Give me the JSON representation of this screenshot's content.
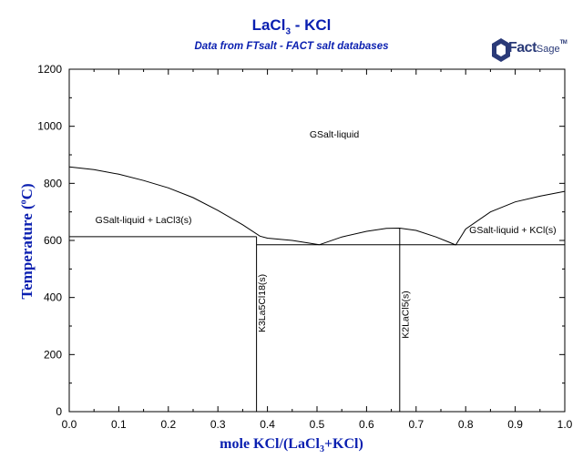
{
  "header": {
    "title_main": "LaCl",
    "title_sub": "3",
    "title_tail": " - KCl",
    "subtitle": "Data from FTsalt - FACT salt databases"
  },
  "logo": {
    "fact": "Fact",
    "sage": "Sage",
    "tm": "TM",
    "color": "#2a3a78"
  },
  "axes": {
    "xlabel_pre": "mole KCl/(LaCl",
    "xlabel_sub": "3",
    "xlabel_post": "+KCl)",
    "ylabel_pre": "Temperature (",
    "ylabel_sup": "o",
    "ylabel_post": "C)"
  },
  "colors": {
    "title": "#0a1fb0",
    "curves": "#000000"
  },
  "chart_data": {
    "type": "line",
    "title": "LaCl3 - KCl",
    "subtitle": "Data from FTsalt - FACT salt databases",
    "xlabel": "mole KCl/(LaCl3+KCl)",
    "ylabel": "Temperature (oC)",
    "xlim": [
      0,
      1
    ],
    "ylim": [
      0,
      1200
    ],
    "xticks": [
      0,
      0.1,
      0.2,
      0.3,
      0.4,
      0.5,
      0.6,
      0.7,
      0.8,
      0.9,
      1.0
    ],
    "xtick_labels": [
      "0.0",
      "0.1",
      "0.2",
      "0.3",
      "0.4",
      "0.5",
      "0.6",
      "0.7",
      "0.8",
      "0.9",
      "1.0"
    ],
    "yticks": [
      0,
      200,
      400,
      600,
      800,
      1000,
      1200
    ],
    "ytick_labels": [
      "0",
      "200",
      "400",
      "600",
      "800",
      "1000",
      "1200"
    ],
    "grid": false,
    "series": [
      {
        "points": [
          [
            0,
            858
          ],
          [
            0.05,
            848
          ],
          [
            0.1,
            832
          ],
          [
            0.15,
            810
          ],
          [
            0.2,
            784
          ],
          [
            0.25,
            750
          ],
          [
            0.3,
            705
          ],
          [
            0.35,
            655
          ],
          [
            0.385,
            615
          ],
          [
            0.4,
            608
          ],
          [
            0.45,
            600
          ],
          [
            0.505,
            585
          ]
        ]
      },
      {
        "points": [
          [
            0.505,
            585
          ],
          [
            0.55,
            612
          ],
          [
            0.6,
            632
          ],
          [
            0.64,
            642
          ],
          [
            0.667,
            643
          ],
          [
            0.7,
            635
          ],
          [
            0.74,
            612
          ],
          [
            0.765,
            595
          ],
          [
            0.78,
            584
          ]
        ]
      },
      {
        "points": [
          [
            0.78,
            584
          ],
          [
            0.8,
            640
          ],
          [
            0.85,
            700
          ],
          [
            0.9,
            735
          ],
          [
            0.95,
            755
          ],
          [
            1.0,
            772
          ]
        ]
      },
      {
        "points": [
          [
            0,
            613
          ],
          [
            0.378,
            613
          ]
        ]
      },
      {
        "points": [
          [
            0.378,
            585
          ],
          [
            1.0,
            585
          ]
        ]
      },
      {
        "points": [
          [
            0.378,
            0
          ],
          [
            0.378,
            613
          ]
        ]
      },
      {
        "points": [
          [
            0.667,
            0
          ],
          [
            0.667,
            643
          ]
        ]
      }
    ],
    "regions": [
      {
        "text": "GSalt-liquid",
        "x": 0.535,
        "y": 960
      },
      {
        "text": "GSalt-liquid + LaCl3(s)",
        "x": 0.15,
        "y": 660
      },
      {
        "text": "GSalt-liquid + KCl(s)",
        "x": 0.895,
        "y": 625
      }
    ],
    "vertical_labels": [
      {
        "text": "K3La5Cl18(s)",
        "x": 0.395,
        "y": 380
      },
      {
        "text": "K2LaCl5(s)",
        "x": 0.685,
        "y": 340
      }
    ]
  }
}
